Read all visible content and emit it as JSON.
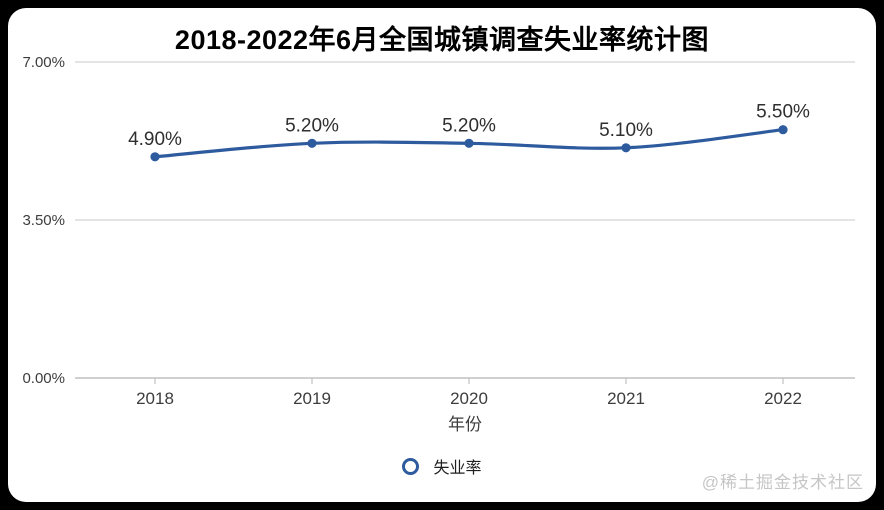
{
  "page": {
    "watermark": "@稀土掘金技术社区"
  },
  "chart_data": {
    "type": "line",
    "title": "2018-2022年6月全国城镇调查失业率统计图",
    "categories": [
      "2018",
      "2019",
      "2020",
      "2021",
      "2022"
    ],
    "series": [
      {
        "name": "失业率",
        "values": [
          4.9,
          5.2,
          5.2,
          5.1,
          5.5
        ]
      }
    ],
    "point_labels": [
      "4.90%",
      "5.20%",
      "5.20%",
      "5.10%",
      "5.50%"
    ],
    "xlabel": "年份",
    "ylabel": "",
    "ylim": [
      0,
      7
    ],
    "yticks": [
      0,
      3.5,
      7
    ],
    "ytick_labels": [
      "0.00%",
      "3.50%",
      "7.00%"
    ],
    "grid": true,
    "legend_position": "bottom",
    "smooth": true,
    "colors": {
      "line": "#2e5b9e",
      "marker": "#2e5b9e",
      "grid": "#dcdcdc",
      "axis": "#c0c0c0",
      "point_label": "#2f2f2f",
      "tick_text": "#3d3d3d",
      "title": "#000000",
      "watermark": "#c6c6c6",
      "card_bg": "#ffffff",
      "page_bg": "#000000"
    }
  }
}
